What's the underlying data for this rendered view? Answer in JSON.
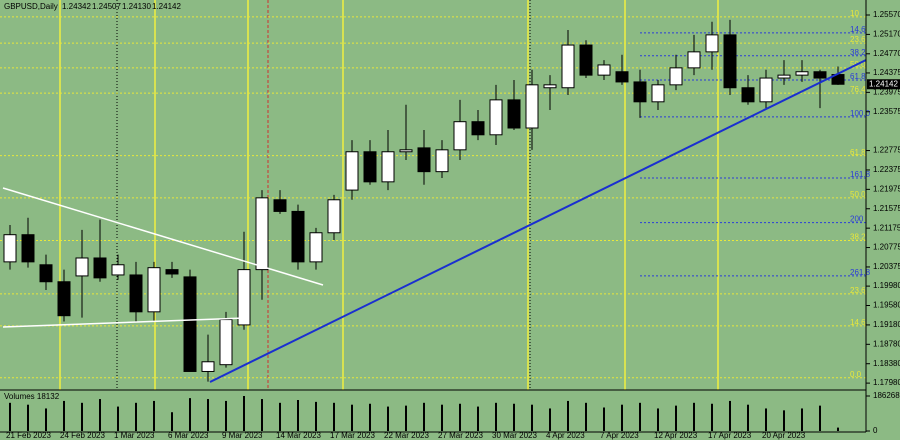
{
  "chart_data": {
    "type": "candlestick",
    "title": "GBPUSD,Daily",
    "header_values": [
      1.24342,
      1.24507,
      {
        "value": 1.2413,
        "label": "1.24130"
      },
      1.24142
    ],
    "categories": [
      "21 Feb 2023",
      null,
      null,
      "24 Feb 2023",
      null,
      null,
      "1 Mar 2023",
      null,
      null,
      "6 Mar 2023",
      null,
      null,
      "9 Mar 2023",
      null,
      null,
      "14 Mar 2023",
      null,
      null,
      "17 Mar 2023",
      null,
      null,
      "22 Mar 2023",
      null,
      null,
      "27 Mar 2023",
      null,
      null,
      "30 Mar 2023",
      null,
      null,
      "4 Apr 2023",
      null,
      null,
      "7 Apr 2023",
      null,
      null,
      "12 Apr 2023",
      null,
      null,
      "17 Apr 2023",
      null,
      null,
      "20 Apr 2023",
      null,
      null,
      null,
      null
    ],
    "open": [
      1.2048,
      1.2104,
      1.2042,
      1.2007,
      1.2019,
      1.2056,
      1.2021,
      1.2021,
      1.1945,
      1.2032,
      1.2017,
      1.1822,
      1.1836,
      1.1918,
      1.2032,
      1.2176,
      1.2152,
      1.2048,
      1.2108,
      1.2196,
      1.2275,
      1.2213,
      1.2275,
      1.2283,
      1.2234,
      1.2279,
      1.2337,
      1.231,
      1.2382,
      1.2324,
      1.2407,
      1.2407,
      1.2495,
      1.2433,
      1.244,
      1.2419,
      1.2378,
      1.2413,
      1.2448,
      1.2481,
      1.2516,
      1.2407,
      1.2378,
      1.2427,
      1.2433,
      1.244,
      1.24342
    ],
    "high": [
      1.2124,
      1.2139,
      1.2063,
      1.2032,
      1.2114,
      1.2135,
      1.2063,
      1.2048,
      1.2048,
      1.2048,
      1.2032,
      1.1898,
      1.1945,
      1.211,
      1.2196,
      1.2196,
      1.2166,
      1.2118,
      1.2186,
      1.2299,
      1.2299,
      1.232,
      1.2372,
      1.232,
      1.2299,
      1.2382,
      1.2361,
      1.2413,
      1.2423,
      1.2444,
      1.2433,
      1.2526,
      1.2505,
      1.2464,
      1.2475,
      1.2444,
      1.2423,
      1.2475,
      1.2516,
      1.2543,
      1.2547,
      1.2433,
      1.2444,
      1.2464,
      1.2464,
      1.2444,
      1.24507
    ],
    "low": [
      1.2032,
      1.2036,
      1.199,
      1.1925,
      1.1933,
      1.2007,
      1.2011,
      1.1925,
      1.1925,
      1.2015,
      1.1822,
      1.1801,
      1.183,
      1.1908,
      1.197,
      1.2147,
      1.2032,
      1.2032,
      1.2093,
      1.2176,
      1.2207,
      1.2196,
      1.2258,
      1.2207,
      1.2221,
      1.2258,
      1.2299,
      1.2289,
      1.232,
      1.2279,
      1.2361,
      1.2392,
      1.2427,
      1.2423,
      1.2413,
      1.2345,
      1.2361,
      1.2402,
      1.2433,
      1.2444,
      1.2392,
      1.2372,
      1.2365,
      1.2413,
      1.2419,
      1.2365,
      1.2413
    ],
    "close": [
      1.2104,
      1.2048,
      1.2007,
      1.1937,
      1.2056,
      1.2015,
      1.2042,
      1.1945,
      1.2036,
      1.2023,
      1.1822,
      1.1842,
      1.1929,
      1.2032,
      1.218,
      1.2152,
      1.2048,
      1.2108,
      1.2176,
      1.2275,
      1.2213,
      1.2275,
      1.2279,
      1.2234,
      1.2279,
      1.2337,
      1.231,
      1.2382,
      1.2324,
      1.2413,
      1.2413,
      1.2495,
      1.2433,
      1.2454,
      1.2419,
      1.2378,
      1.2413,
      1.2448,
      1.2481,
      1.2516,
      1.2407,
      1.2378,
      1.2427,
      1.2433,
      1.244,
      1.2427,
      1.24142
    ],
    "volumes": [
      150000,
      140000,
      120000,
      160000,
      150000,
      170000,
      130000,
      150000,
      160000,
      100000,
      175000,
      170000,
      160000,
      186268,
      170000,
      150000,
      165000,
      155000,
      150000,
      140000,
      145000,
      130000,
      135000,
      150000,
      140000,
      145000,
      130000,
      150000,
      145000,
      140000,
      120000,
      160000,
      150000,
      125000,
      140000,
      150000,
      120000,
      135000,
      150000,
      145000,
      160000,
      140000,
      120000,
      110000,
      120000,
      135000,
      18132
    ],
    "volume_title": "Volumes 18132",
    "vlim": [
      0,
      186268
    ],
    "vticks": [
      186268,
      0
    ],
    "ylim": [
      1.17838,
      1.25776
    ],
    "yticks": [
      {
        "value": 1.2557,
        "label": "1.25570"
      },
      {
        "value": 1.2517,
        "label": "1.25170"
      },
      {
        "value": 1.2477,
        "label": "1.24770"
      },
      1.24375,
      1.23975,
      1.23575,
      1.22775,
      1.22375,
      1.21975,
      1.21575,
      1.21175,
      1.20775,
      1.20375,
      {
        "value": 1.1998,
        "label": "1.19980"
      },
      {
        "value": 1.1958,
        "label": "1.19580"
      },
      {
        "value": 1.1918,
        "label": "1.19180"
      },
      {
        "value": 1.1878,
        "label": "1.18780"
      },
      {
        "value": 1.1838,
        "label": "1.18380"
      },
      {
        "value": 1.1798,
        "label": "1.17980"
      }
    ],
    "fib_levels": [
      {
        "price": 1.2553,
        "label": "10",
        "group": "retracement"
      },
      {
        "price": 1.252,
        "label": "14.6",
        "group": "extension"
      },
      {
        "price": 1.2499,
        "label": "23.6",
        "group": "retracement"
      },
      {
        "price": 1.2473,
        "label": "38.2",
        "group": "extension"
      },
      {
        "price": 1.2448,
        "label": "50.0",
        "group": "retracement"
      },
      {
        "price": 1.2423,
        "label": "61.8",
        "group": "extension"
      },
      {
        "price": 1.2396,
        "label": "76.4",
        "group": "retracement"
      },
      {
        "price": 1.2347,
        "label": "100.0",
        "group": "extension"
      },
      {
        "price": 1.2267,
        "label": "61.8",
        "group": "retracement"
      },
      {
        "price": 1.2221,
        "label": "161.8",
        "group": "extension"
      },
      {
        "price": 1.218,
        "label": "50.0",
        "group": "retracement"
      },
      {
        "price": 1.2129,
        "label": "200",
        "group": "extension"
      },
      {
        "price": 1.2092,
        "label": "38.2",
        "group": "retracement"
      },
      {
        "price": 1.2019,
        "label": "261.8",
        "group": "extension"
      },
      {
        "price": 1.1982,
        "label": "23.6",
        "group": "retracement"
      },
      {
        "price": 1.1916,
        "label": "14.6",
        "group": "retracement"
      },
      {
        "price": 1.1809,
        "label": "0.0",
        "group": "retracement"
      }
    ],
    "colors": {
      "background": "#8cba84",
      "bull": "#ffffff",
      "bear": "#000000",
      "retracement": "#e8e83a",
      "extension": "#2a3cd8",
      "volume": "#000000"
    }
  }
}
